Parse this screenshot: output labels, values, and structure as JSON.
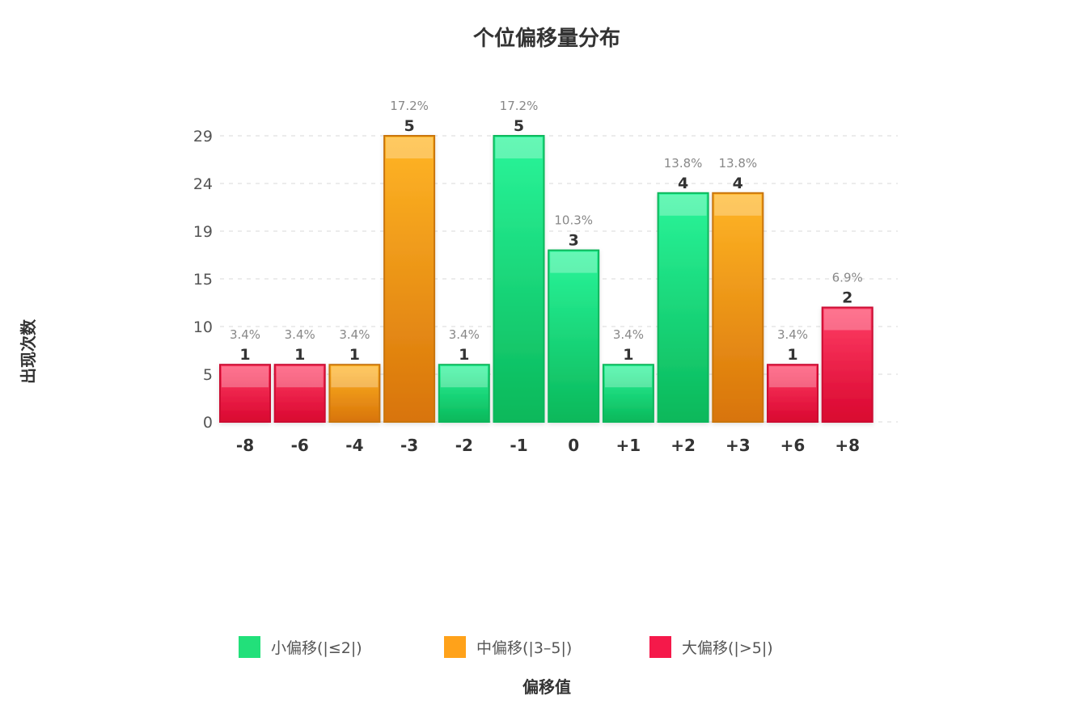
{
  "chart_data": {
    "type": "bar",
    "title": "个位偏移量分布",
    "xlabel": "偏移值",
    "ylabel": "出现次数",
    "categories": [
      "-8",
      "-6",
      "-4",
      "-3",
      "-2",
      "-1",
      "0",
      "+1",
      "+2",
      "+3",
      "+6",
      "+8"
    ],
    "values": [
      1,
      1,
      1,
      5,
      1,
      5,
      3,
      1,
      4,
      4,
      1,
      2
    ],
    "percent_labels": [
      "3.4%",
      "3.4%",
      "3.4%",
      "17.2%",
      "3.4%",
      "17.2%",
      "10.3%",
      "3.4%",
      "13.8%",
      "13.8%",
      "3.4%",
      "6.9%"
    ],
    "groups": [
      "large",
      "large",
      "medium",
      "medium",
      "small",
      "small",
      "small",
      "small",
      "small",
      "medium",
      "large",
      "large"
    ],
    "y_ticks": [
      "0",
      "5",
      "10",
      "15",
      "19",
      "24",
      "29"
    ],
    "y_tick_values": [
      0,
      0.833,
      1.667,
      2.5,
      3.333,
      4.167,
      5
    ],
    "ylim": [
      0,
      5
    ],
    "grid": true,
    "legend_position": "bottom",
    "legend": [
      {
        "key": "small",
        "label": "小偏移(|≤2|)",
        "color": "#22e07a"
      },
      {
        "key": "medium",
        "label": "中偏移(|3–5|)",
        "color": "#ffa21a"
      },
      {
        "key": "large",
        "label": "大偏移(|>5|)",
        "color": "#f5194a"
      }
    ]
  }
}
